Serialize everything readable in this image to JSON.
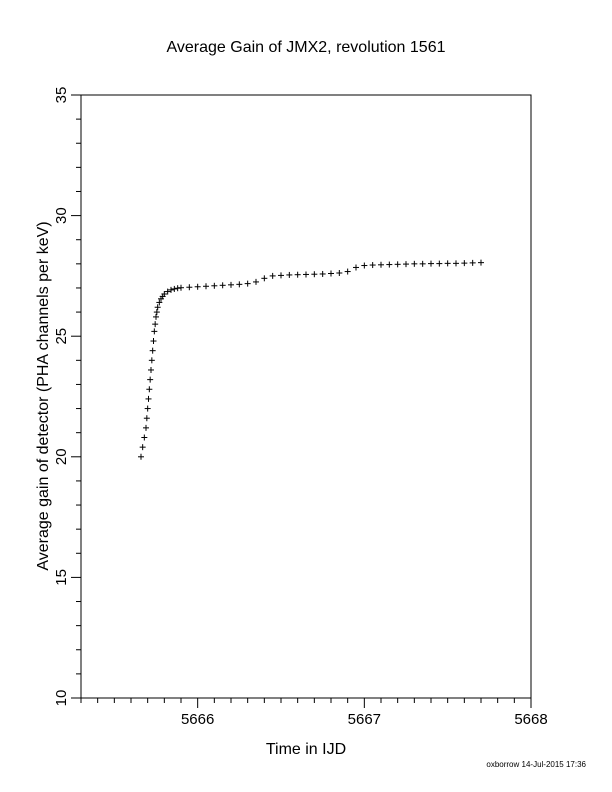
{
  "chart_data": {
    "type": "scatter",
    "title": "Average Gain of JMX2, revolution 1561",
    "xlabel": "Time in IJD",
    "ylabel": "Average gain of detector (PHA channels per keV)",
    "xlim": [
      5665.3,
      5668
    ],
    "ylim": [
      10,
      35
    ],
    "x_major_ticks": [
      5666,
      5667,
      5668
    ],
    "x_minor_step": 0.1,
    "y_major_ticks": [
      10,
      15,
      20,
      25,
      30,
      35
    ],
    "y_minor_step": 1,
    "grid": false,
    "legend": "none",
    "marker": "plus",
    "color": "#000000",
    "series": [
      {
        "x": [
          5665.66,
          5665.67,
          5665.68,
          5665.69,
          5665.695,
          5665.7,
          5665.705,
          5665.71,
          5665.715,
          5665.72,
          5665.725,
          5665.73,
          5665.735,
          5665.74,
          5665.745,
          5665.75,
          5665.755,
          5665.76,
          5665.77,
          5665.78,
          5665.79,
          5665.8,
          5665.82,
          5665.84,
          5665.86,
          5665.88,
          5665.9,
          5665.95,
          5666.0,
          5666.05,
          5666.1,
          5666.15,
          5666.2,
          5666.25,
          5666.3,
          5666.35,
          5666.4,
          5666.45,
          5666.5,
          5666.55,
          5666.6,
          5666.65,
          5666.7,
          5666.75,
          5666.8,
          5666.85,
          5666.9,
          5666.95,
          5667.0,
          5667.05,
          5667.1,
          5667.15,
          5667.2,
          5667.25,
          5667.3,
          5667.35,
          5667.4,
          5667.45,
          5667.5,
          5667.55,
          5667.6,
          5667.65,
          5667.7
        ],
        "y": [
          20.0,
          20.4,
          20.8,
          21.2,
          21.6,
          22.0,
          22.4,
          22.8,
          23.2,
          23.6,
          24.0,
          24.4,
          24.8,
          25.2,
          25.5,
          25.8,
          26.0,
          26.2,
          26.4,
          26.55,
          26.65,
          26.75,
          26.85,
          26.92,
          26.96,
          26.99,
          27.01,
          27.03,
          27.05,
          27.07,
          27.09,
          27.11,
          27.13,
          27.15,
          27.18,
          27.25,
          27.4,
          27.5,
          27.52,
          27.54,
          27.55,
          27.56,
          27.57,
          27.58,
          27.6,
          27.62,
          27.68,
          27.85,
          27.93,
          27.95,
          27.96,
          27.97,
          27.98,
          27.99,
          28.0,
          28.0,
          28.01,
          28.01,
          28.02,
          28.02,
          28.03,
          28.04,
          28.05
        ]
      }
    ]
  },
  "footer": {
    "stamp": "oxborrow 14-Jul-2015 17:36"
  }
}
